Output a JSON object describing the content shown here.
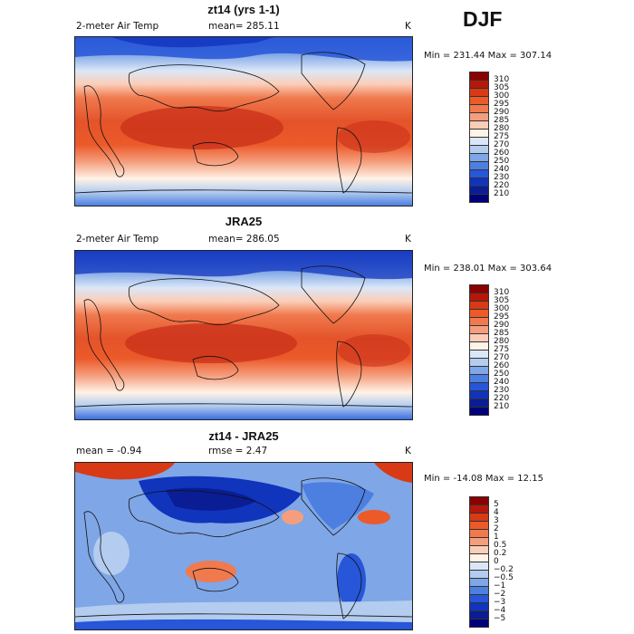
{
  "season": "DJF",
  "panels": [
    {
      "title": "zt14 (yrs 1-1)",
      "left_label": "2-meter Air Temp",
      "center_label": "mean=  285.11",
      "unit": "K",
      "minmax": "Min = 231.44 Max = 307.14",
      "colorbar": {
        "labels": [
          "310",
          "305",
          "300",
          "295",
          "290",
          "285",
          "280",
          "275",
          "270",
          "260",
          "250",
          "240",
          "230",
          "220",
          "210"
        ],
        "colors": [
          "#8b0000",
          "#b5180b",
          "#d83a15",
          "#ec5a2a",
          "#f07a4e",
          "#f59e7d",
          "#fbcdb7",
          "#fff2e6",
          "#dbe7f7",
          "#b3ccef",
          "#7fa6e6",
          "#4d7fe0",
          "#2756d8",
          "#1134bd",
          "#0a1d95",
          "#00007a"
        ]
      }
    },
    {
      "title": "JRA25",
      "left_label": "2-meter Air Temp",
      "center_label": "mean=  286.05",
      "unit": "K",
      "minmax": "Min = 238.01 Max = 303.64",
      "colorbar": {
        "labels": [
          "310",
          "305",
          "300",
          "295",
          "290",
          "285",
          "280",
          "275",
          "270",
          "260",
          "250",
          "240",
          "230",
          "220",
          "210"
        ],
        "colors": [
          "#8b0000",
          "#b5180b",
          "#d83a15",
          "#ec5a2a",
          "#f07a4e",
          "#f59e7d",
          "#fbcdb7",
          "#fff2e6",
          "#dbe7f7",
          "#b3ccef",
          "#7fa6e6",
          "#4d7fe0",
          "#2756d8",
          "#1134bd",
          "#0a1d95",
          "#00007a"
        ]
      }
    },
    {
      "title": "zt14 - JRA25",
      "left_label": "mean =   -0.94",
      "center_label": "rmse =    2.47",
      "unit": "K",
      "minmax": "Min = -14.08 Max =  12.15",
      "colorbar": {
        "labels": [
          "5",
          "4",
          "3",
          "2",
          "1",
          "0.5",
          "0.2",
          "0",
          "−0.2",
          "−0.5",
          "−1",
          "−2",
          "−3",
          "−4",
          "−5"
        ],
        "colors": [
          "#8b0000",
          "#b5180b",
          "#d83a15",
          "#ec5a2a",
          "#f07a4e",
          "#f59e7d",
          "#fbcdb7",
          "#fff2e6",
          "#dbe7f7",
          "#b3ccef",
          "#7fa6e6",
          "#4d7fe0",
          "#2756d8",
          "#1134bd",
          "#0a1d95",
          "#00007a"
        ]
      }
    }
  ]
}
